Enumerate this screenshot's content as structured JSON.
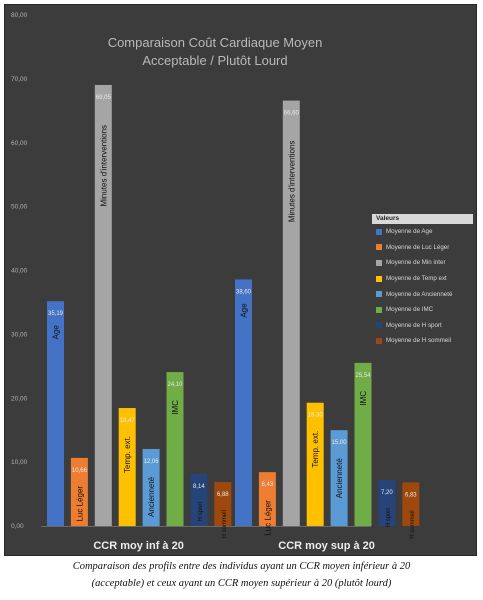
{
  "caption_lines": [
    "Comparaison des profils entre des individus ayant un CCR moyen inférieur à 20",
    "(acceptable) et ceux ayant un CCR moyen supérieur à 20 (plutôt lourd)"
  ],
  "legend_title": "Valeurs",
  "colors": {
    "panel_bg": "#3c3c3c",
    "bar_colors": [
      "#4472c4",
      "#ed7d31",
      "#a5a5a5",
      "#ffc000",
      "#5b9bd5",
      "#70ad47",
      "#264478",
      "#9e480e"
    ]
  },
  "chart_data": {
    "type": "bar",
    "title": [
      "Comparaison Coût Cardiaque Moyen",
      "Acceptable / Plutôt Lourd"
    ],
    "categories": [
      "CCR moy inf à 20",
      "CCR moy sup à 20"
    ],
    "series": [
      {
        "name": "Moyenne de Age",
        "short": "Age",
        "values": [
          35.19,
          38.6
        ],
        "labels": [
          "35,19",
          "38,60"
        ]
      },
      {
        "name": "Moyenne de Luc Léger",
        "short": "Luc Léger",
        "values": [
          10.66,
          8.43
        ],
        "labels": [
          "10,66",
          "8,43"
        ]
      },
      {
        "name": "Moyenne de Min inter",
        "short": "Minutes d'interventions",
        "values": [
          69.05,
          66.6
        ],
        "labels": [
          "69,05",
          "66,60"
        ]
      },
      {
        "name": "Moyenne de Temp ext",
        "short": "Temp. ext.",
        "values": [
          18.47,
          19.3
        ],
        "labels": [
          "18,47",
          "19,30"
        ]
      },
      {
        "name": "Moyenne de Ancienneté",
        "short": "Ancienneté",
        "values": [
          12.06,
          15.0
        ],
        "labels": [
          "12,06",
          "15,00"
        ]
      },
      {
        "name": "Moyenne de IMC",
        "short": "IMC",
        "values": [
          24.1,
          25.54
        ],
        "labels": [
          "24,10",
          "25,54"
        ]
      },
      {
        "name": "Moyenne de H sport",
        "short": "H sport",
        "values": [
          8.14,
          7.2
        ],
        "labels": [
          "8,14",
          "7,20"
        ]
      },
      {
        "name": "Moyenne de H sommeil",
        "short": "H sommeil",
        "values": [
          6.88,
          6.83
        ],
        "labels": [
          "6,88",
          "6,83"
        ]
      }
    ],
    "ylim": [
      0,
      80
    ],
    "yticks": [
      "0,00",
      "10,00",
      "20,00",
      "30,00",
      "40,00",
      "50,00",
      "60,00",
      "70,00",
      "80,00"
    ],
    "legend_position": "right",
    "grid": false
  }
}
